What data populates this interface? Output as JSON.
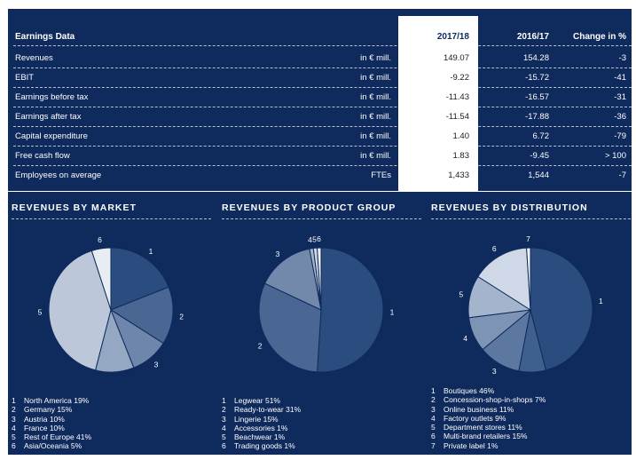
{
  "table": {
    "header": {
      "title": "Earnings Data",
      "col1": "2017/18",
      "col2": "2016/17",
      "col3": "Change in %"
    },
    "rows": [
      {
        "label": "Revenues",
        "unit": "in € mill.",
        "v1": "149.07",
        "v2": "154.28",
        "v3": "-3"
      },
      {
        "label": "EBIT",
        "unit": "in € mill.",
        "v1": "-9.22",
        "v2": "-15.72",
        "v3": "-41"
      },
      {
        "label": "Earnings before tax",
        "unit": "in € mill.",
        "v1": "-11.43",
        "v2": "-16.57",
        "v3": "-31"
      },
      {
        "label": "Earnings after tax",
        "unit": "in € mill.",
        "v1": "-11.54",
        "v2": "-17.88",
        "v3": "-36"
      },
      {
        "label": "Capital expenditure",
        "unit": "in € mill.",
        "v1": "1.40",
        "v2": "6.72",
        "v3": "-79"
      },
      {
        "label": "Free cash flow",
        "unit": "in € mill.",
        "v1": "1.83",
        "v2": "-9.45",
        "v3": "> 100"
      },
      {
        "label": "Employees on average",
        "unit": "FTEs",
        "v1": "1,433",
        "v2": "1,544",
        "v3": "-7"
      }
    ]
  },
  "colors": {
    "background": "#0f2a5c",
    "highlight": "#ffffff"
  },
  "chart_data": [
    {
      "type": "pie",
      "title": "REVENUES BY MARKET",
      "categories": [
        "1",
        "2",
        "3",
        "4",
        "5",
        "6"
      ],
      "values": [
        19,
        15,
        10,
        10,
        41,
        5
      ],
      "colors": [
        "#2b4c7e",
        "#4a6794",
        "#6e86ab",
        "#94a7c3",
        "#bcc8da",
        "#e8edf4"
      ],
      "legend": [
        "North America 19%",
        "Germany 15%",
        "Austria 10%",
        "France 10%",
        "Rest of Europe 41%",
        "Asia/Oceania 5%"
      ]
    },
    {
      "type": "pie",
      "title": "REVENUES BY PRODUCT GROUP",
      "categories": [
        "1",
        "2",
        "3",
        "4",
        "5",
        "6"
      ],
      "values": [
        51,
        31,
        15,
        1,
        1,
        1
      ],
      "colors": [
        "#2b4c7e",
        "#4a6794",
        "#7389ac",
        "#a6b6cd",
        "#cdd6e4",
        "#eef2f7"
      ],
      "legend": [
        "Legwear 51%",
        "Ready-to-wear 31%",
        "Lingerie 15%",
        "Accessories 1%",
        "Beachwear 1%",
        "Trading goods 1%"
      ]
    },
    {
      "type": "pie",
      "title": "REVENUES BY DISTRIBUTION",
      "categories": [
        "1",
        "2",
        "3",
        "4",
        "5",
        "6",
        "7"
      ],
      "values": [
        46,
        7,
        11,
        9,
        11,
        15,
        1
      ],
      "colors": [
        "#2b4c7e",
        "#3f5f8f",
        "#5c77a0",
        "#7d94b5",
        "#a3b4cc",
        "#cfd8e6",
        "#f2f5f9"
      ],
      "legend": [
        "Boutiques 46%",
        "Concession-shop-in-shops 7%",
        "Online business 11%",
        "Factory outlets 9%",
        "Department stores 11%",
        "Multi-brand retailers 15%",
        "Private label 1%"
      ]
    }
  ]
}
